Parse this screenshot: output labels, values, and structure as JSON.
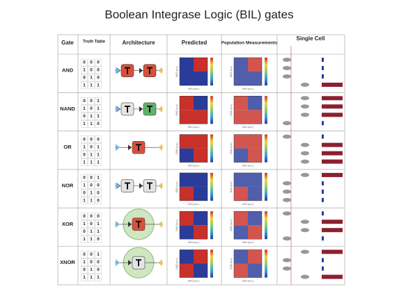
{
  "title": "Boolean Integrase Logic (BIL) gates",
  "header": {
    "gate": "Gate",
    "truth_table": "Truth Table",
    "architecture": "Architecture",
    "predicted": "Predicted",
    "population": "Population Measurements",
    "single_cell": "Single Cell"
  },
  "axis_labels": {
    "x": "Ctrl1 (a.u.)",
    "y": "Ctrl2 (a.u.)"
  },
  "rows": [
    {
      "gate": "AND",
      "truth_table": [
        [
          0,
          0,
          0
        ],
        [
          1,
          0,
          0
        ],
        [
          0,
          1,
          0
        ],
        [
          1,
          1,
          1
        ]
      ]
    },
    {
      "gate": "NAND",
      "truth_table": [
        [
          0,
          0,
          1
        ],
        [
          1,
          0,
          1
        ],
        [
          0,
          1,
          1
        ],
        [
          1,
          1,
          0
        ]
      ]
    },
    {
      "gate": "OR",
      "truth_table": [
        [
          0,
          0,
          0
        ],
        [
          1,
          0,
          1
        ],
        [
          0,
          1,
          1
        ],
        [
          1,
          1,
          1
        ]
      ]
    },
    {
      "gate": "NOR",
      "truth_table": [
        [
          0,
          0,
          1
        ],
        [
          1,
          0,
          0
        ],
        [
          0,
          1,
          0
        ],
        [
          1,
          1,
          0
        ]
      ]
    },
    {
      "gate": "XOR",
      "truth_table": [
        [
          0,
          0,
          0
        ],
        [
          1,
          0,
          1
        ],
        [
          0,
          1,
          1
        ],
        [
          1,
          1,
          0
        ]
      ]
    },
    {
      "gate": "XNOR",
      "truth_table": [
        [
          0,
          0,
          1
        ],
        [
          1,
          0,
          0
        ],
        [
          0,
          1,
          0
        ],
        [
          1,
          1,
          1
        ]
      ]
    }
  ]
}
